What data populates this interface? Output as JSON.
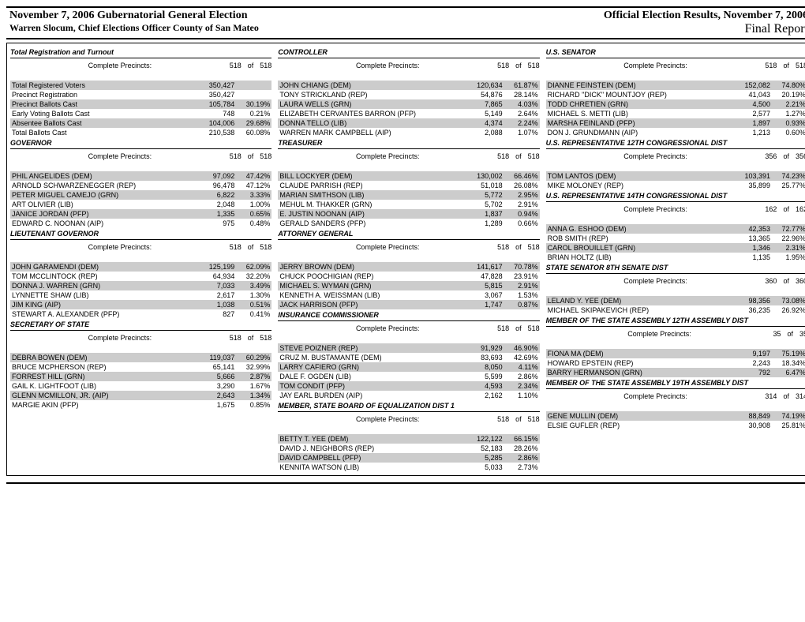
{
  "header": {
    "title_left": "November 7, 2006 Gubernatorial General Election",
    "title_right": "Official Election Results, November 7, 2006",
    "subtitle_left": "Warren Slocum, Chief Elections Officer   County of San Mateo",
    "subtitle_right": "Final Report"
  },
  "labels": {
    "complete_precincts": "Complete Precincts:",
    "of": "of"
  },
  "columns": [
    {
      "sections": [
        {
          "title": "Total Registration and Turnout",
          "precincts": {
            "a": "518",
            "b": "518"
          },
          "rows": [
            {
              "label": "Total Registered Voters",
              "num": "350,427",
              "pct": "",
              "shaded": true
            },
            {
              "label": "Precinct Registration",
              "num": "350,427",
              "pct": "",
              "shaded": false
            },
            {
              "label": "Precinct Ballots Cast",
              "num": "105,784",
              "pct": "30.19%",
              "shaded": true
            },
            {
              "label": "Early Voting Ballots Cast",
              "num": "748",
              "pct": "0.21%",
              "shaded": false
            },
            {
              "label": "Absentee Ballots Cast",
              "num": "104,006",
              "pct": "29.68%",
              "shaded": true
            },
            {
              "label": "Total Ballots Cast",
              "num": "210,538",
              "pct": "60.08%",
              "shaded": false
            }
          ]
        },
        {
          "title": "GOVERNOR",
          "precincts": {
            "a": "518",
            "b": "518"
          },
          "rows": [
            {
              "label": "PHIL ANGELIDES (DEM)",
              "num": "97,092",
              "pct": "47.42%",
              "shaded": true
            },
            {
              "label": "ARNOLD SCHWARZENEGGER (REP)",
              "num": "96,478",
              "pct": "47.12%",
              "shaded": false
            },
            {
              "label": "PETER MIGUEL CAMEJO (GRN)",
              "num": "6,822",
              "pct": "3.33%",
              "shaded": true
            },
            {
              "label": "ART OLIVIER (LIB)",
              "num": "2,048",
              "pct": "1.00%",
              "shaded": false
            },
            {
              "label": "JANICE JORDAN (PFP)",
              "num": "1,335",
              "pct": "0.65%",
              "shaded": true
            },
            {
              "label": "EDWARD C. NOONAN (AIP)",
              "num": "975",
              "pct": "0.48%",
              "shaded": false
            }
          ]
        },
        {
          "title": "LIEUTENANT GOVERNOR",
          "precincts": {
            "a": "518",
            "b": "518"
          },
          "rows": [
            {
              "label": "JOHN GARAMENDI (DEM)",
              "num": "125,199",
              "pct": "62.09%",
              "shaded": true
            },
            {
              "label": "TOM MCCLINTOCK (REP)",
              "num": "64,934",
              "pct": "32.20%",
              "shaded": false
            },
            {
              "label": "DONNA J. WARREN (GRN)",
              "num": "7,033",
              "pct": "3.49%",
              "shaded": true
            },
            {
              "label": "LYNNETTE SHAW (LIB)",
              "num": "2,617",
              "pct": "1.30%",
              "shaded": false
            },
            {
              "label": "JIM KING (AIP)",
              "num": "1,038",
              "pct": "0.51%",
              "shaded": true
            },
            {
              "label": "STEWART A. ALEXANDER (PFP)",
              "num": "827",
              "pct": "0.41%",
              "shaded": false
            }
          ]
        },
        {
          "title": "SECRETARY OF STATE",
          "precincts": {
            "a": "518",
            "b": "518"
          },
          "rows": [
            {
              "label": "DEBRA BOWEN (DEM)",
              "num": "119,037",
              "pct": "60.29%",
              "shaded": true
            },
            {
              "label": "BRUCE MCPHERSON (REP)",
              "num": "65,141",
              "pct": "32.99%",
              "shaded": false
            },
            {
              "label": "FORREST HILL (GRN)",
              "num": "5,666",
              "pct": "2.87%",
              "shaded": true
            },
            {
              "label": "GAIL K. LIGHTFOOT (LIB)",
              "num": "3,290",
              "pct": "1.67%",
              "shaded": false
            },
            {
              "label": "GLENN MCMILLON, JR. (AIP)",
              "num": "2,643",
              "pct": "1.34%",
              "shaded": true
            },
            {
              "label": "MARGIE AKIN (PFP)",
              "num": "1,675",
              "pct": "0.85%",
              "shaded": false
            }
          ]
        }
      ]
    },
    {
      "sections": [
        {
          "title": "CONTROLLER",
          "precincts": {
            "a": "518",
            "b": "518"
          },
          "rows": [
            {
              "label": "JOHN CHIANG (DEM)",
              "num": "120,634",
              "pct": "61.87%",
              "shaded": true
            },
            {
              "label": "TONY STRICKLAND (REP)",
              "num": "54,876",
              "pct": "28.14%",
              "shaded": false
            },
            {
              "label": "LAURA WELLS (GRN)",
              "num": "7,865",
              "pct": "4.03%",
              "shaded": true
            },
            {
              "label": "ELIZABETH CERVANTES BARRON (PFP)",
              "num": "5,149",
              "pct": "2.64%",
              "shaded": false
            },
            {
              "label": "DONNA TELLO (LIB)",
              "num": "4,374",
              "pct": "2.24%",
              "shaded": true
            },
            {
              "label": "WARREN MARK CAMPBELL (AIP)",
              "num": "2,088",
              "pct": "1.07%",
              "shaded": false
            }
          ]
        },
        {
          "title": "TREASURER",
          "precincts": {
            "a": "518",
            "b": "518"
          },
          "rows": [
            {
              "label": "BILL LOCKYER (DEM)",
              "num": "130,002",
              "pct": "66.46%",
              "shaded": true
            },
            {
              "label": "CLAUDE PARRISH (REP)",
              "num": "51,018",
              "pct": "26.08%",
              "shaded": false
            },
            {
              "label": "MARIAN SMITHSON (LIB)",
              "num": "5,772",
              "pct": "2.95%",
              "shaded": true
            },
            {
              "label": "MEHUL M. THAKKER (GRN)",
              "num": "5,702",
              "pct": "2.91%",
              "shaded": false
            },
            {
              "label": "E. JUSTIN NOONAN (AIP)",
              "num": "1,837",
              "pct": "0.94%",
              "shaded": true
            },
            {
              "label": "GERALD SANDERS (PFP)",
              "num": "1,289",
              "pct": "0.66%",
              "shaded": false
            }
          ]
        },
        {
          "title": "ATTORNEY GENERAL",
          "precincts": {
            "a": "518",
            "b": "518"
          },
          "rows": [
            {
              "label": "JERRY BROWN (DEM)",
              "num": "141,617",
              "pct": "70.78%",
              "shaded": true
            },
            {
              "label": "CHUCK POOCHIGIAN (REP)",
              "num": "47,828",
              "pct": "23.91%",
              "shaded": false
            },
            {
              "label": "MICHAEL S. WYMAN (GRN)",
              "num": "5,815",
              "pct": "2.91%",
              "shaded": true
            },
            {
              "label": "KENNETH A. WEISSMAN (LIB)",
              "num": "3,067",
              "pct": "1.53%",
              "shaded": false
            },
            {
              "label": "JACK HARRISON (PFP)",
              "num": "1,747",
              "pct": "0.87%",
              "shaded": true
            }
          ]
        },
        {
          "title": "INSURANCE COMMISSIONER",
          "precincts": {
            "a": "518",
            "b": "518"
          },
          "rows": [
            {
              "label": "STEVE POIZNER (REP)",
              "num": "91,929",
              "pct": "46.90%",
              "shaded": true
            },
            {
              "label": "CRUZ M. BUSTAMANTE (DEM)",
              "num": "83,693",
              "pct": "42.69%",
              "shaded": false
            },
            {
              "label": "LARRY CAFIERO (GRN)",
              "num": "8,050",
              "pct": "4.11%",
              "shaded": true
            },
            {
              "label": "DALE F. OGDEN (LIB)",
              "num": "5,599",
              "pct": "2.86%",
              "shaded": false
            },
            {
              "label": "TOM CONDIT (PFP)",
              "num": "4,593",
              "pct": "2.34%",
              "shaded": true
            },
            {
              "label": "JAY EARL BURDEN (AIP)",
              "num": "2,162",
              "pct": "1.10%",
              "shaded": false
            }
          ]
        },
        {
          "title": "MEMBER, STATE BOARD OF EQUALIZATION DIST 1",
          "precincts": {
            "a": "518",
            "b": "518"
          },
          "rows": [
            {
              "label": "BETTY T. YEE (DEM)",
              "num": "122,122",
              "pct": "66.15%",
              "shaded": true
            },
            {
              "label": "DAVID J. NEIGHBORS (REP)",
              "num": "52,183",
              "pct": "28.26%",
              "shaded": false
            },
            {
              "label": "DAVID CAMPBELL (PFP)",
              "num": "5,285",
              "pct": "2.86%",
              "shaded": true
            },
            {
              "label": "KENNITA WATSON (LIB)",
              "num": "5,033",
              "pct": "2.73%",
              "shaded": false
            }
          ]
        }
      ]
    },
    {
      "sections": [
        {
          "title": "U.S. SENATOR",
          "precincts": {
            "a": "518",
            "b": "518"
          },
          "rows": [
            {
              "label": "DIANNE FEINSTEIN (DEM)",
              "num": "152,082",
              "pct": "74.80%",
              "shaded": true
            },
            {
              "label": "RICHARD \"DICK\" MOUNTJOY (REP)",
              "num": "41,043",
              "pct": "20.19%",
              "shaded": false
            },
            {
              "label": "TODD CHRETIEN (GRN)",
              "num": "4,500",
              "pct": "2.21%",
              "shaded": true
            },
            {
              "label": "MICHAEL S. METTI (LIB)",
              "num": "2,577",
              "pct": "1.27%",
              "shaded": false
            },
            {
              "label": "MARSHA FEINLAND (PFP)",
              "num": "1,897",
              "pct": "0.93%",
              "shaded": true
            },
            {
              "label": "DON J. GRUNDMANN (AIP)",
              "num": "1,213",
              "pct": "0.60%",
              "shaded": false
            }
          ]
        },
        {
          "title": "U.S. REPRESENTATIVE 12TH CONGRESSIONAL DIST",
          "precincts": {
            "a": "356",
            "b": "356"
          },
          "rows": [
            {
              "label": "TOM LANTOS (DEM)",
              "num": "103,391",
              "pct": "74.23%",
              "shaded": true
            },
            {
              "label": "MIKE MOLONEY (REP)",
              "num": "35,899",
              "pct": "25.77%",
              "shaded": false
            }
          ]
        },
        {
          "title": "U.S. REPRESENTATIVE 14TH CONGRESSIONAL DIST",
          "precincts": {
            "a": "162",
            "b": "162"
          },
          "rows": [
            {
              "label": "ANNA G. ESHOO (DEM)",
              "num": "42,353",
              "pct": "72.77%",
              "shaded": true
            },
            {
              "label": "ROB SMITH (REP)",
              "num": "13,365",
              "pct": "22.96%",
              "shaded": false
            },
            {
              "label": "CAROL BROUILLET (GRN)",
              "num": "1,346",
              "pct": "2.31%",
              "shaded": true
            },
            {
              "label": "BRIAN HOLTZ (LIB)",
              "num": "1,135",
              "pct": "1.95%",
              "shaded": false
            }
          ]
        },
        {
          "title": "STATE SENATOR 8TH SENATE DIST",
          "precincts": {
            "a": "360",
            "b": "360"
          },
          "rows": [
            {
              "label": "LELAND Y. YEE (DEM)",
              "num": "98,356",
              "pct": "73.08%",
              "shaded": true
            },
            {
              "label": "MICHAEL SKIPAKEVICH (REP)",
              "num": "36,235",
              "pct": "26.92%",
              "shaded": false
            }
          ]
        },
        {
          "title": "MEMBER OF THE STATE ASSEMBLY 12TH ASSEMBLY  DIST",
          "precincts": {
            "a": "35",
            "b": "35"
          },
          "rows": [
            {
              "label": "FIONA MA (DEM)",
              "num": "9,197",
              "pct": "75.19%",
              "shaded": true
            },
            {
              "label": "HOWARD EPSTEIN (REP)",
              "num": "2,243",
              "pct": "18.34%",
              "shaded": false
            },
            {
              "label": "BARRY HERMANSON (GRN)",
              "num": "792",
              "pct": "6.47%",
              "shaded": true
            }
          ]
        },
        {
          "title": "MEMBER OF THE STATE ASSEMBLY 19TH ASSEMBLY  DIST",
          "precincts": {
            "a": "314",
            "b": "314"
          },
          "rows": [
            {
              "label": "GENE MULLIN (DEM)",
              "num": "88,849",
              "pct": "74.19%",
              "shaded": true
            },
            {
              "label": "ELSIE GUFLER (REP)",
              "num": "30,908",
              "pct": "25.81%",
              "shaded": false
            }
          ]
        }
      ]
    }
  ]
}
